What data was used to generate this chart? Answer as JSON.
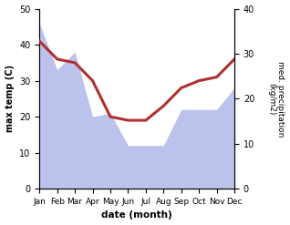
{
  "months": [
    "Jan",
    "Feb",
    "Mar",
    "Apr",
    "May",
    "Jun",
    "Jul",
    "Aug",
    "Sep",
    "Oct",
    "Nov",
    "Dec"
  ],
  "temp": [
    41,
    36,
    35,
    30,
    20,
    19,
    19,
    23,
    28,
    30,
    31,
    36
  ],
  "precip_left_scale": [
    46,
    33,
    38,
    20,
    21,
    12,
    12,
    12,
    22,
    22,
    22,
    28
  ],
  "xlabel": "date (month)",
  "ylabel_left": "max temp (C)",
  "ylabel_right": "med. precipitation\n(kg/m2)",
  "ylim_left": [
    0,
    50
  ],
  "ylim_right": [
    0,
    40
  ],
  "fill_color": "#b0b8e8",
  "line_color": "#b03030",
  "bg_color": "#ffffff",
  "left_yticks": [
    0,
    10,
    20,
    30,
    40,
    50
  ],
  "right_yticks": [
    0,
    10,
    20,
    30,
    40
  ],
  "tick_fontsize": 7,
  "xlabel_fontsize": 7.5,
  "ylabel_fontsize": 7,
  "linewidth": 2.2
}
